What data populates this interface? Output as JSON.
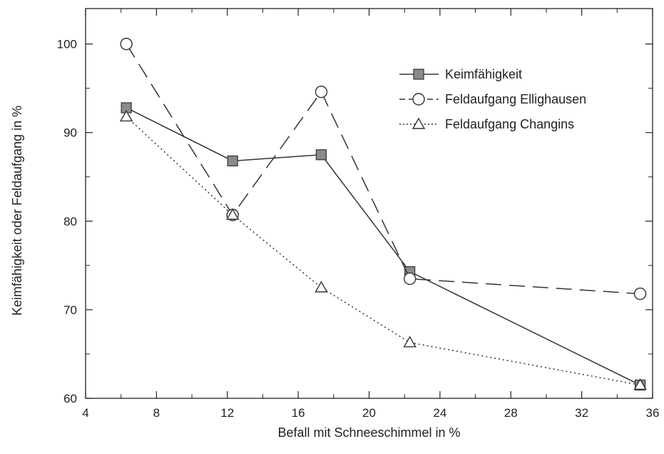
{
  "chart_data": {
    "type": "line",
    "title": "",
    "xlabel": "Befall mit Schneeschimmel in %",
    "ylabel": "Keimfähigkeit oder Feldaufgang in %",
    "xlim": [
      4,
      36
    ],
    "ylim": [
      60,
      104
    ],
    "x_ticks": [
      4,
      8,
      12,
      16,
      20,
      24,
      28,
      32,
      36
    ],
    "y_ticks": [
      60,
      70,
      80,
      90,
      100
    ],
    "grid": false,
    "legend_position": "top-right",
    "series": [
      {
        "name": "Keimfähigkeit",
        "marker": "square",
        "line_style": "solid",
        "color": "#333333",
        "x": [
          6.3,
          12.3,
          17.3,
          22.3,
          35.3
        ],
        "y": [
          92.8,
          86.8,
          87.5,
          74.3,
          61.5
        ]
      },
      {
        "name": "Feldaufgang Ellighausen",
        "marker": "circle",
        "line_style": "dashed",
        "color": "#333333",
        "x": [
          6.3,
          12.3,
          17.3,
          22.3,
          35.3
        ],
        "y": [
          100.0,
          80.7,
          94.6,
          73.5,
          71.8
        ]
      },
      {
        "name": "Feldaufgang Changins",
        "marker": "triangle",
        "line_style": "dotted",
        "color": "#333333",
        "x": [
          6.3,
          12.3,
          17.3,
          22.3,
          35.3
        ],
        "y": [
          91.8,
          80.7,
          72.5,
          66.3,
          61.5
        ]
      }
    ]
  }
}
